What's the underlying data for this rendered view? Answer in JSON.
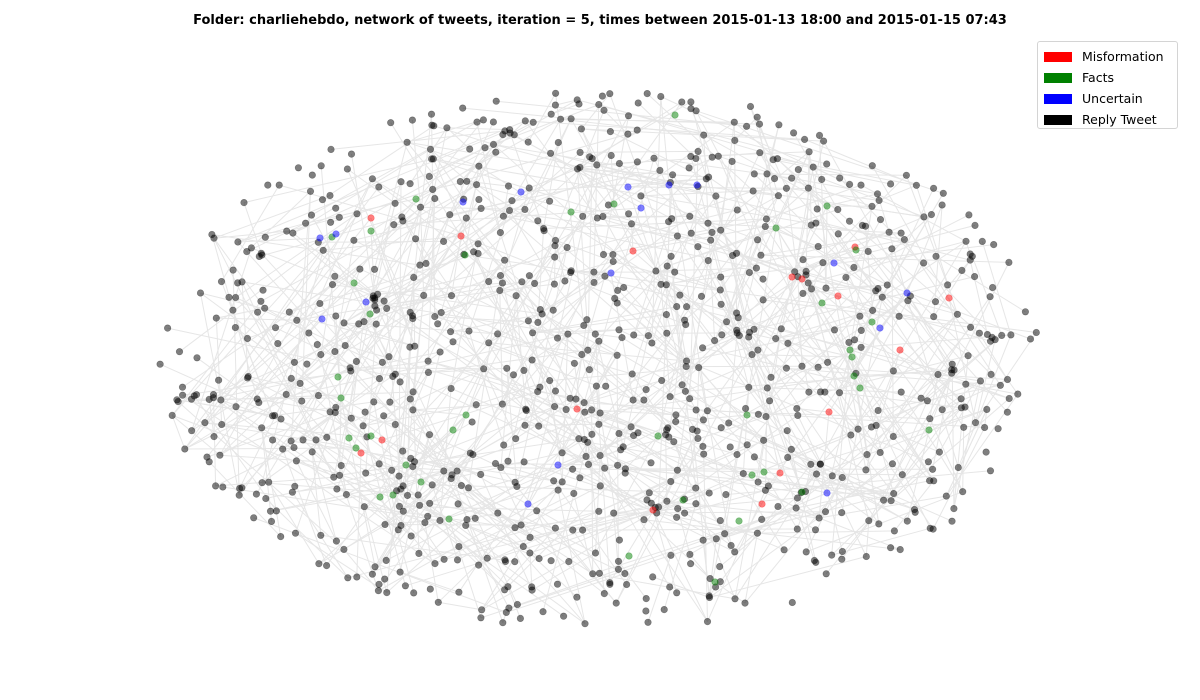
{
  "title": "Folder: charliehebdo, network of tweets, iteration = 5, times between 2015-01-13 18:00 and 2015-01-15 07:43",
  "legend": [
    {
      "label": "Misformation",
      "color": "#ff0000"
    },
    {
      "label": "Facts",
      "color": "#008000"
    },
    {
      "label": "Uncertain",
      "color": "#0000ff"
    },
    {
      "label": "Reply Tweet",
      "color": "#000000"
    }
  ],
  "network": {
    "edge_color": "#e6e6e6",
    "node_opacity": 0.5,
    "category_colors": {
      "misinformation": "#ff0000",
      "facts": "#008000",
      "uncertain": "#0000ff",
      "reply": "#000000"
    },
    "reply_node_count": 900,
    "edge_count": 1150
  }
}
